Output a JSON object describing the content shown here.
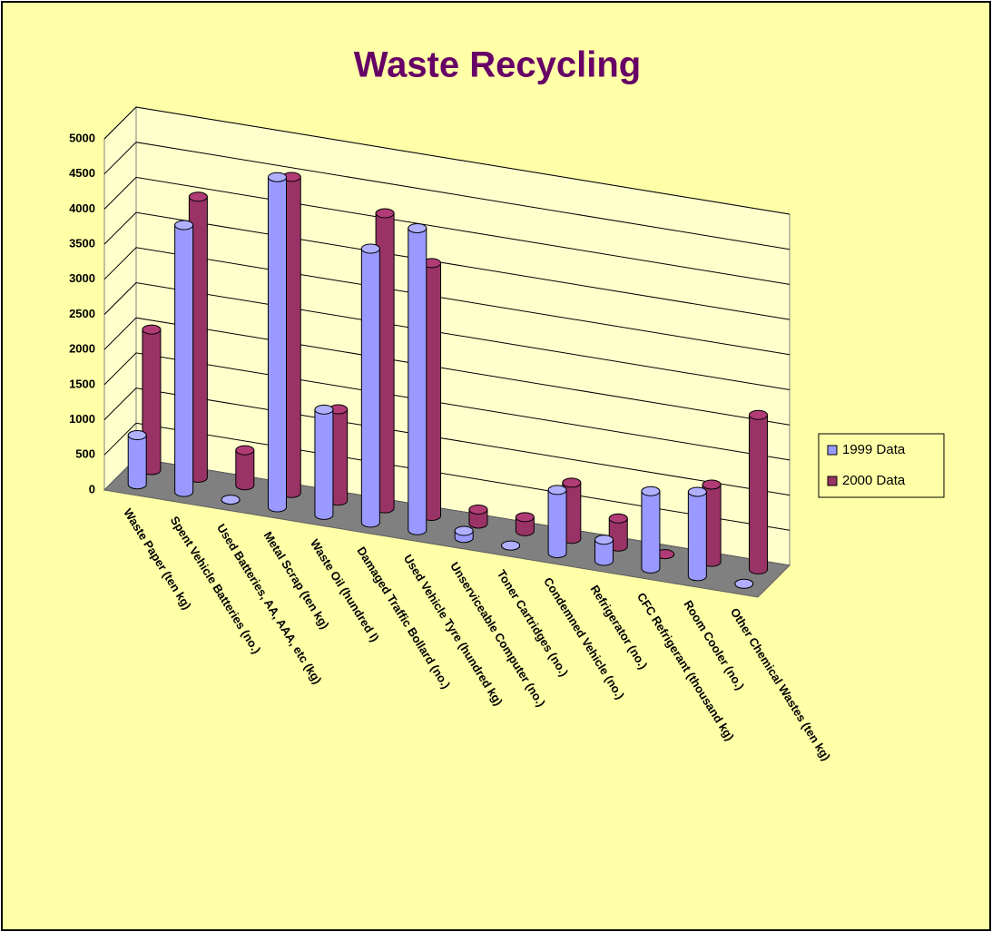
{
  "chart_data": {
    "type": "bar3d",
    "title": "Waste Recycling",
    "categories": [
      "Waste Paper (ten kg)",
      "Spent Vehicle Batteries (no.)",
      "Used Batteries, AA, AAA, etc (kg)",
      "Metal Scrap (ten kg)",
      "Waste Oil (hundred l)",
      "Damaged Traffic Bollard (no.)",
      "Used Vehicle Tyre (hundred kg)",
      "Unserviceable Computer (no.)",
      "Toner Cartridges (no.)",
      "Condemned Vehicle (no.)",
      "Refrigerator (no.)",
      "CFC Refrigerant (thousand kg)",
      "Room Cooler (no.)",
      "Other Chemical Wastes (ten kg)"
    ],
    "series": [
      {
        "name": "1999 Data",
        "color": "#9999ff",
        "values": [
          700,
          3800,
          0,
          4700,
          1500,
          3900,
          4300,
          100,
          0,
          900,
          300,
          1100,
          1200,
          0
        ]
      },
      {
        "name": "2000 Data",
        "color": "#993366",
        "values": [
          2000,
          4000,
          500,
          4500,
          1300,
          4200,
          3600,
          200,
          200,
          800,
          400,
          0,
          1100,
          2200
        ]
      }
    ],
    "ylim": [
      0,
      5000
    ],
    "yticks": [
      0,
      500,
      1000,
      1500,
      2000,
      2500,
      3000,
      3500,
      4000,
      4500,
      5000
    ],
    "grid": true,
    "legend": "right"
  }
}
